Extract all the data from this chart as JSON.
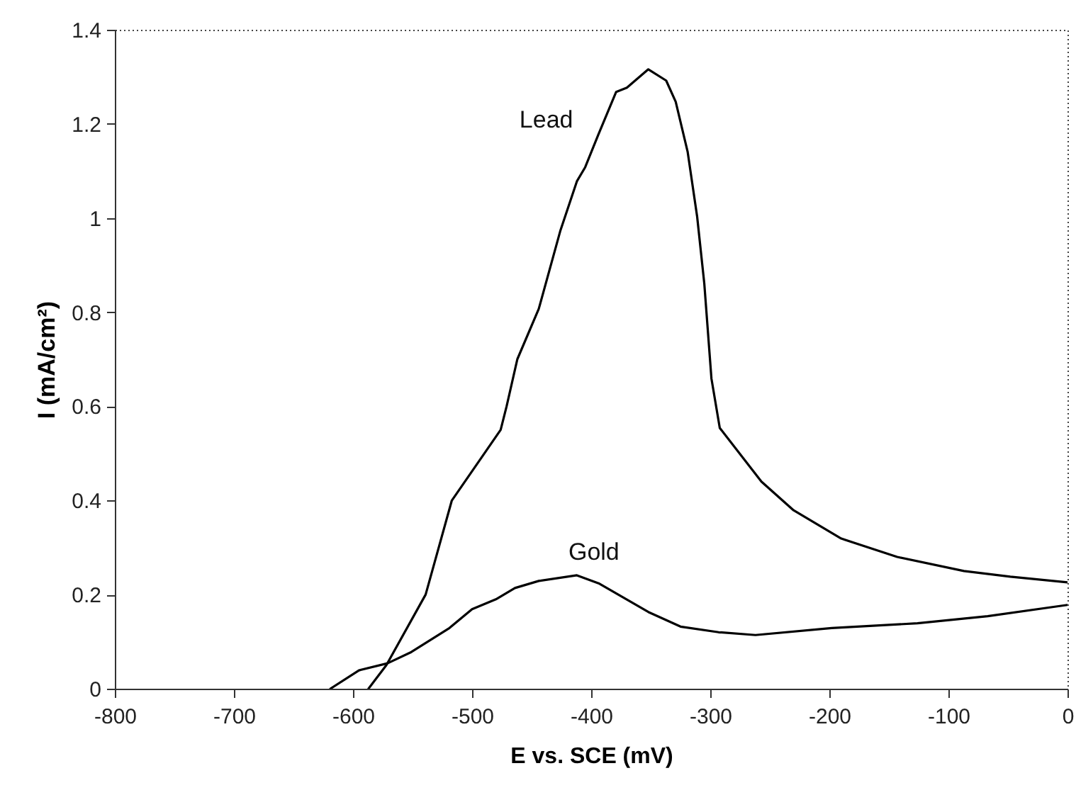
{
  "chart_data": {
    "type": "line",
    "xlabel": "E vs. SCE (mV)",
    "ylabel": "I (mA/cm²)",
    "xlim": [
      -800,
      0
    ],
    "xticks": [
      -800,
      -700,
      -600,
      -500,
      -400,
      -300,
      -200,
      -100,
      0
    ],
    "ylim": [
      0,
      1.4
    ],
    "yticks": [
      0,
      0.2,
      0.4,
      0.6,
      0.8,
      1,
      1.2,
      1.4
    ],
    "grid": false,
    "marker": "none",
    "line_style": "solid",
    "series": [
      {
        "name": "Lead",
        "color": "#000000",
        "x": [
          -587,
          -572,
          -539,
          -517,
          -476,
          -471,
          -462,
          -444,
          -426,
          -412,
          -405,
          -394,
          -379,
          -370,
          -352,
          -337,
          -329,
          -319,
          -311,
          -305,
          -299,
          -292,
          -257,
          -230,
          -190,
          -143,
          -87,
          -48,
          0
        ],
        "values": [
          0,
          0.05,
          0.2,
          0.4,
          0.55,
          0.6,
          0.7,
          0.807,
          0.972,
          1.078,
          1.108,
          1.177,
          1.268,
          1.277,
          1.316,
          1.292,
          1.247,
          1.141,
          1.003,
          0.861,
          0.659,
          0.554,
          0.44,
          0.379,
          0.319,
          0.28,
          0.25,
          0.238,
          0.226
        ]
      },
      {
        "name": "Gold",
        "color": "#000000",
        "x": [
          -619,
          -595,
          -571,
          -551,
          -519,
          -500,
          -480,
          -464,
          -444,
          -412,
          -393,
          -352,
          -325,
          -293,
          -262,
          -198,
          -126,
          -67,
          0
        ],
        "values": [
          0,
          0.039,
          0.054,
          0.078,
          0.129,
          0.169,
          0.19,
          0.214,
          0.229,
          0.241,
          0.223,
          0.163,
          0.132,
          0.12,
          0.114,
          0.129,
          0.139,
          0.154,
          0.178
        ]
      }
    ]
  }
}
